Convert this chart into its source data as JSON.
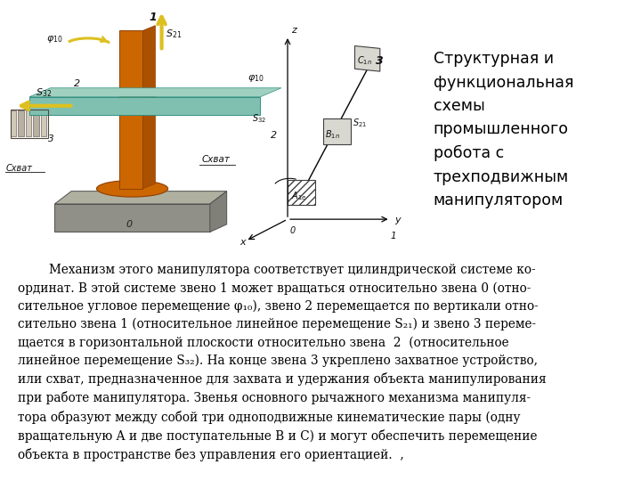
{
  "title_text": "Структурная и\nфункциональная\nсхемы\nпромышленного\nробота с\nтрехподвижным\nманипулятором",
  "body_line1": "        Механизм этого манипулятора соответствует цилиндрической системе ко-",
  "body_line2": "ординат. В этой системе звено 1 может вращаться относительно звена 0 (отно-",
  "body_line3": "сительное угловое перемещение φ₁₀), звено 2 перемещается по вертикали отно-",
  "body_line4": "сительно звена 1 (относительное линейное перемещение S₂₁) и звено 3 переме-",
  "body_line5": "щается в горизонтальной плоскости относительно звена  2  (относительное",
  "body_line6": "линейное перемещение S₃₂). На конце звена 3 укреплено захватное устройство,",
  "body_line7": "или схват, предназначенное для захвата и удержания объекта манипулирования",
  "body_line8": "при работе манипулятора. Звенья основного рычажного механизма манипуля-",
  "body_line9": "тора образуют между собой три одноподвижные кинематические пары (одну",
  "body_line10": "вращательную A и две поступательные B и C) и могут обеспечить перемещение",
  "body_line11": "объекта в пространстве без управления его ориентацией.  ,",
  "bg_color": "#ffffff",
  "diagram_bg": "#b0c4d4",
  "orange": "#cc6600",
  "arm_color": "#80c0b0",
  "arm_top_color": "#a0d0c0",
  "base_top": "#b0b0a0",
  "base_front": "#909088",
  "arrow_yellow": "#ddc020",
  "title_fontsize": 12.5,
  "body_fontsize": 9.8
}
